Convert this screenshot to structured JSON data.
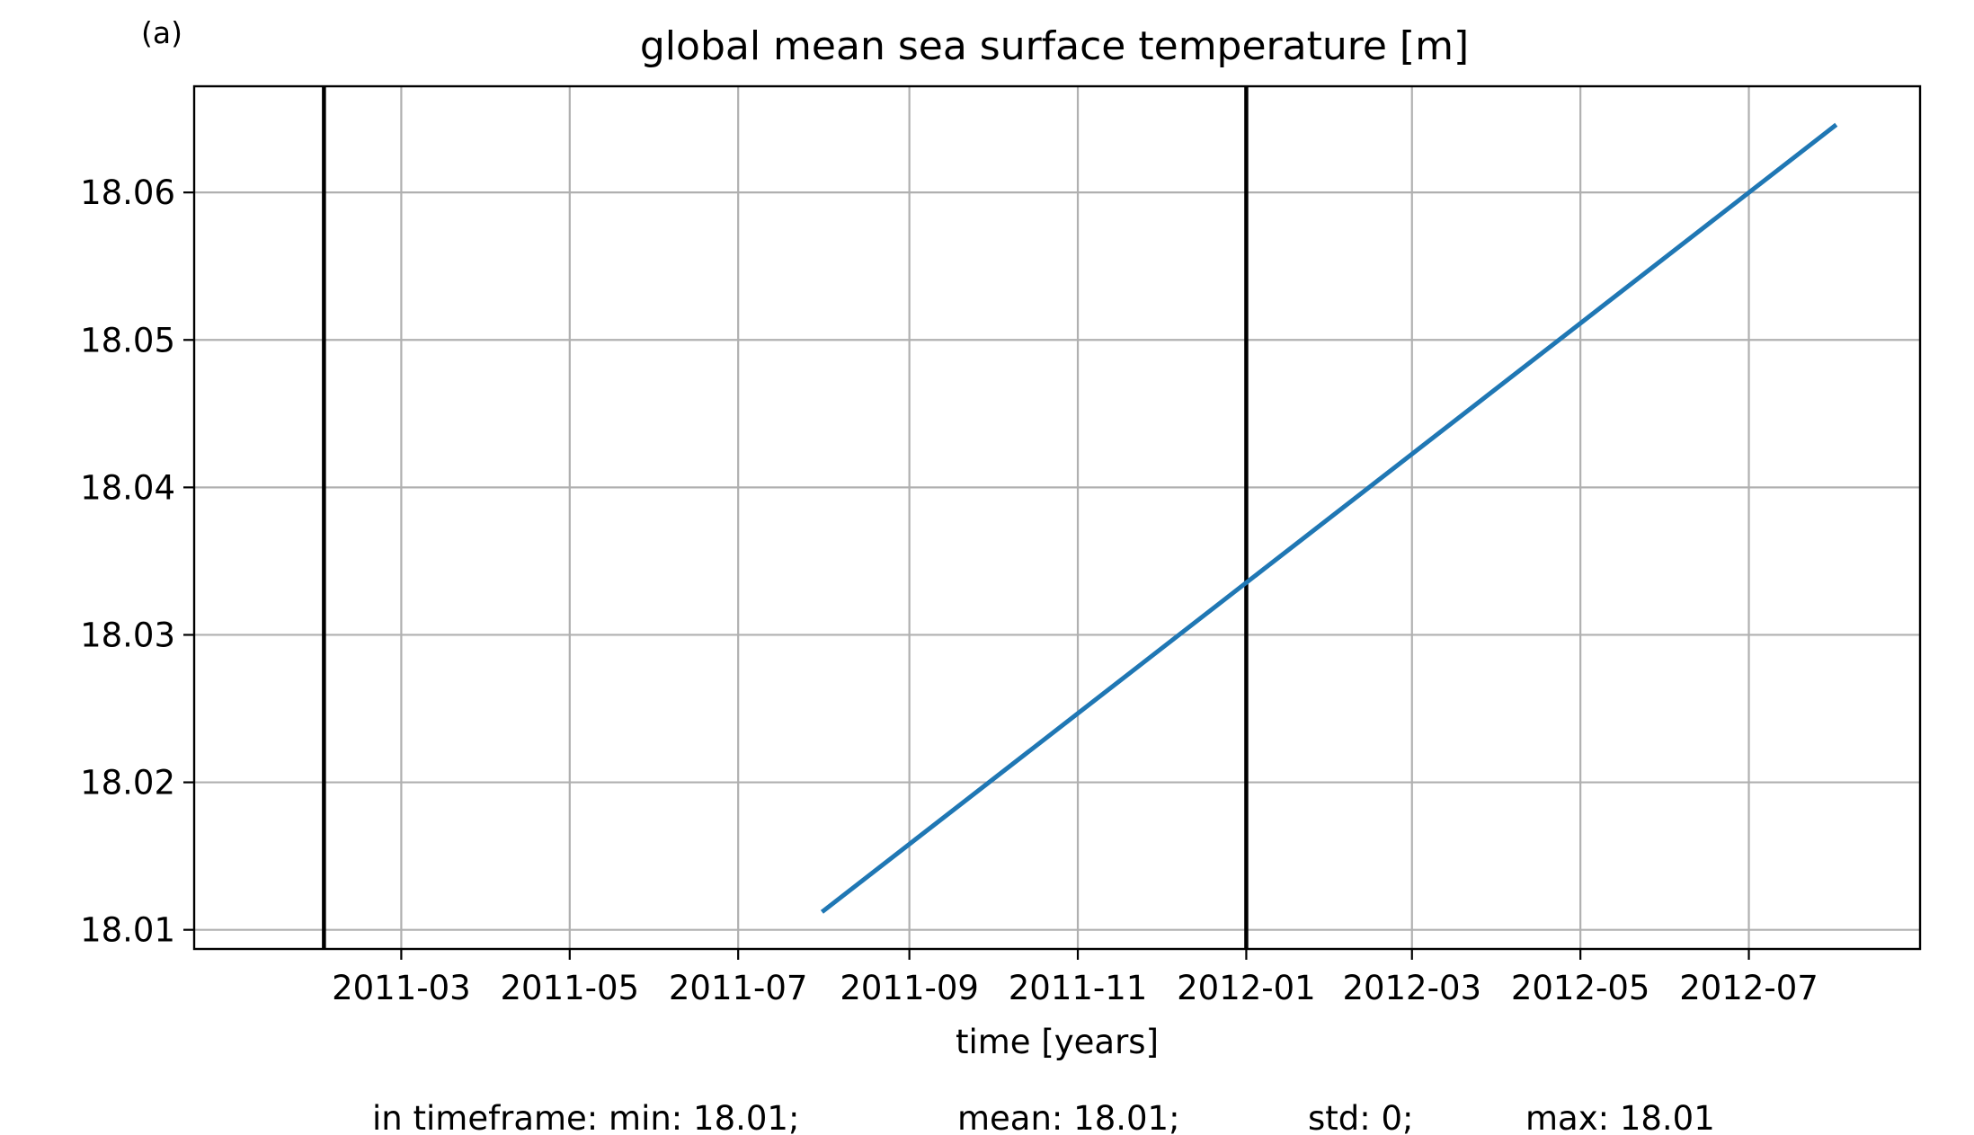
{
  "panel_label": "(a)",
  "stats": {
    "prefix": "in timeframe: min: 18.01;",
    "mean": "mean: 18.01;",
    "std": "std: 0;",
    "max": "max: 18.01"
  },
  "colors": {
    "series_line": "#1f77b4",
    "grid": "#b0b0b0",
    "vlines": "#000000",
    "axes": "#000000"
  },
  "chart_data": {
    "type": "line",
    "title": "global mean sea surface temperature [m]",
    "xlabel": "time [years]",
    "ylabel": "",
    "grid": true,
    "xlim": [
      "2010-12-16",
      "2012-09-01"
    ],
    "ylim": [
      18.0087,
      18.0672
    ],
    "x_ticks": [
      "2011-03",
      "2011-05",
      "2011-07",
      "2011-09",
      "2011-11",
      "2012-01",
      "2012-03",
      "2012-05",
      "2012-07"
    ],
    "y_ticks": [
      18.01,
      18.02,
      18.03,
      18.04,
      18.05,
      18.06
    ],
    "y_tick_labels": [
      "18.01",
      "18.02",
      "18.03",
      "18.04",
      "18.05",
      "18.06"
    ],
    "series": [
      {
        "x": [
          "2011-08-01",
          "2012-08-01"
        ],
        "y": [
          18.0113,
          18.0645
        ]
      }
    ],
    "vertical_lines": [
      "2011-02-01",
      "2012-01-01"
    ]
  }
}
